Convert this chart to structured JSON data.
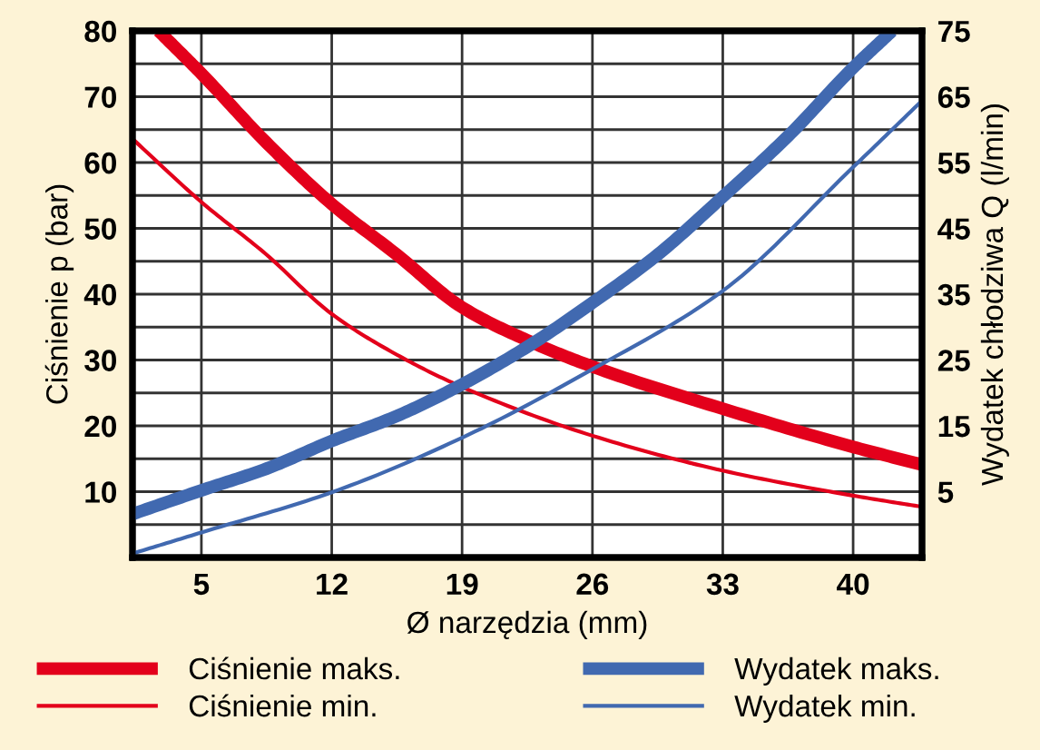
{
  "chart_data": {
    "type": "line",
    "xlabel": "Ø narzędzia (mm)",
    "ylabel": "Ciśnienie p (bar)",
    "y2label": "Wydatek chłodziwa Q (l/min)",
    "xlim": [
      1.3,
      43.7
    ],
    "xticks": [
      5,
      12,
      19,
      26,
      33,
      40
    ],
    "ylim": [
      0,
      80
    ],
    "yticks": [
      {
        "value": 5,
        "label": null
      },
      10,
      {
        "value": 15,
        "label": null
      },
      20,
      {
        "value": 25,
        "label": null
      },
      30,
      {
        "value": 35,
        "label": null
      },
      40,
      {
        "value": 45,
        "label": null
      },
      50,
      {
        "value": 55,
        "label": null
      },
      60,
      {
        "value": 65,
        "label": null
      },
      70,
      {
        "value": 75,
        "label": null
      },
      80
    ],
    "y2lim": [
      -5,
      75
    ],
    "y2ticks": [
      5,
      15,
      25,
      35,
      45,
      55,
      65,
      75
    ],
    "grid": true,
    "legend": "bottom",
    "marker": "none",
    "line_style": "solid",
    "series": [
      {
        "name": "Ciśnienie maks.",
        "color": "#e3001b",
        "x": [
          2.7,
          5,
          8.5,
          12,
          15.5,
          19,
          22.5,
          26,
          33,
          40,
          43.7
        ],
        "values": [
          80,
          73.5,
          63,
          53.7,
          46,
          38,
          33,
          29,
          22.6,
          16.8,
          14.1
        ]
      },
      {
        "name": "Ciśnienie min.",
        "color": "#e3001b",
        "x": [
          1.3,
          5,
          8.5,
          12,
          15.5,
          19,
          26,
          33,
          40,
          43.7
        ],
        "values": [
          63.6,
          54,
          46,
          37,
          30.8,
          25.9,
          18.5,
          13.2,
          9.4,
          7.7
        ]
      },
      {
        "name": "Wydatek maks.",
        "color": "#4169b0",
        "axis": "y2",
        "x": [
          1.3,
          5,
          8.5,
          12,
          15.5,
          19,
          22.5,
          26,
          29.5,
          33,
          36.5,
          40,
          42.1
        ],
        "values": [
          1.6,
          5.2,
          8.5,
          12.7,
          16.5,
          21.3,
          27,
          33.7,
          41,
          49.8,
          59,
          69.4,
          75
        ]
      },
      {
        "name": "Wydatek min.",
        "color": "#4169b0",
        "axis": "y2",
        "x": [
          1.3,
          5,
          12,
          19,
          26,
          33,
          40,
          43.7
        ],
        "values": [
          -4.4,
          -1.2,
          4.9,
          13.2,
          23.6,
          35.5,
          54.3,
          64.4
        ]
      }
    ]
  }
}
